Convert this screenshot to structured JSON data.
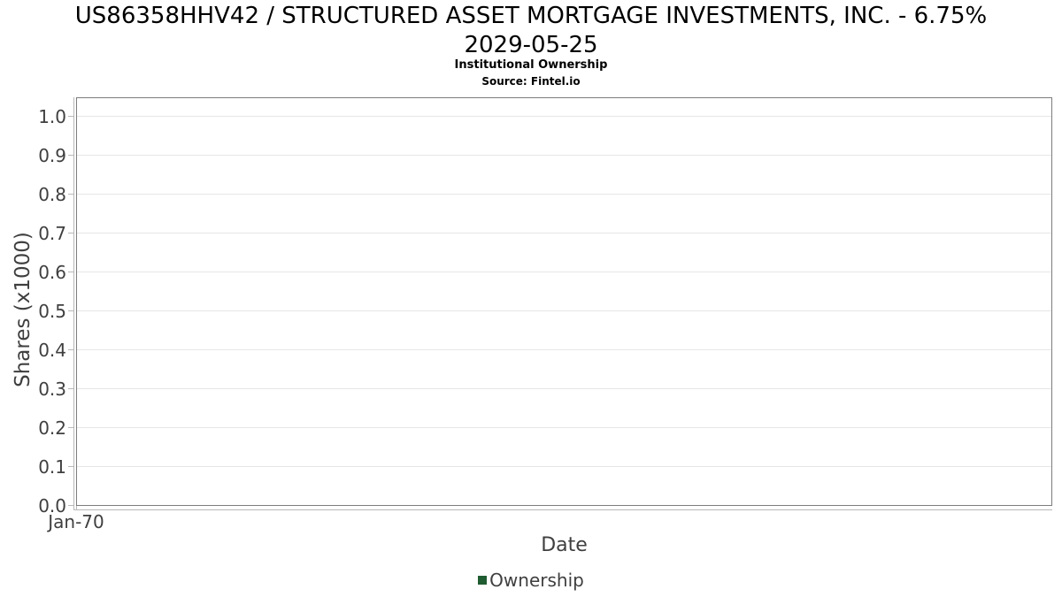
{
  "header": {
    "title_line1": "US86358HHV42 / STRUCTURED ASSET MORTGAGE INVESTMENTS, INC. - 6.75%",
    "title_line2": "2029-05-25",
    "subtitle": "Institutional Ownership",
    "source": "Source: Fintel.io"
  },
  "axes": {
    "y_label": "Shares (x1000)",
    "x_label": "Date"
  },
  "legend": {
    "items": [
      {
        "label": "Ownership",
        "color": "#1f5c31",
        "swatch": "square-icon"
      }
    ]
  },
  "colors": {
    "plot_border": "#7d7d7d",
    "tick_line": "#b8b8b8",
    "gridline": "#e6e6e6",
    "text": "#3f3f3f",
    "title_text": "#000000",
    "series_green": "#1f5c31",
    "background": "#ffffff"
  },
  "chart_data": {
    "type": "line",
    "title": "US86358HHV42 / STRUCTURED ASSET MORTGAGE INVESTMENTS, INC. - 6.75% 2029-05-25",
    "subtitle": "Institutional Ownership",
    "source": "Source: Fintel.io",
    "xlabel": "Date",
    "ylabel": "Shares (x1000)",
    "x_tick_labels": [
      "Jan-70"
    ],
    "y_ticks": [
      0.0,
      0.1,
      0.2,
      0.3,
      0.4,
      0.5,
      0.6,
      0.7,
      0.8,
      0.9,
      1.0
    ],
    "y_tick_labels": [
      "0.0",
      "0.1",
      "0.2",
      "0.3",
      "0.4",
      "0.5",
      "0.6",
      "0.7",
      "0.8",
      "0.9",
      "1.0"
    ],
    "ylim": [
      0.0,
      1.05
    ],
    "grid": "horizontal-only",
    "legend_position": "bottom-center",
    "series": [
      {
        "name": "Ownership",
        "color": "#1f5c31",
        "points": []
      }
    ]
  }
}
